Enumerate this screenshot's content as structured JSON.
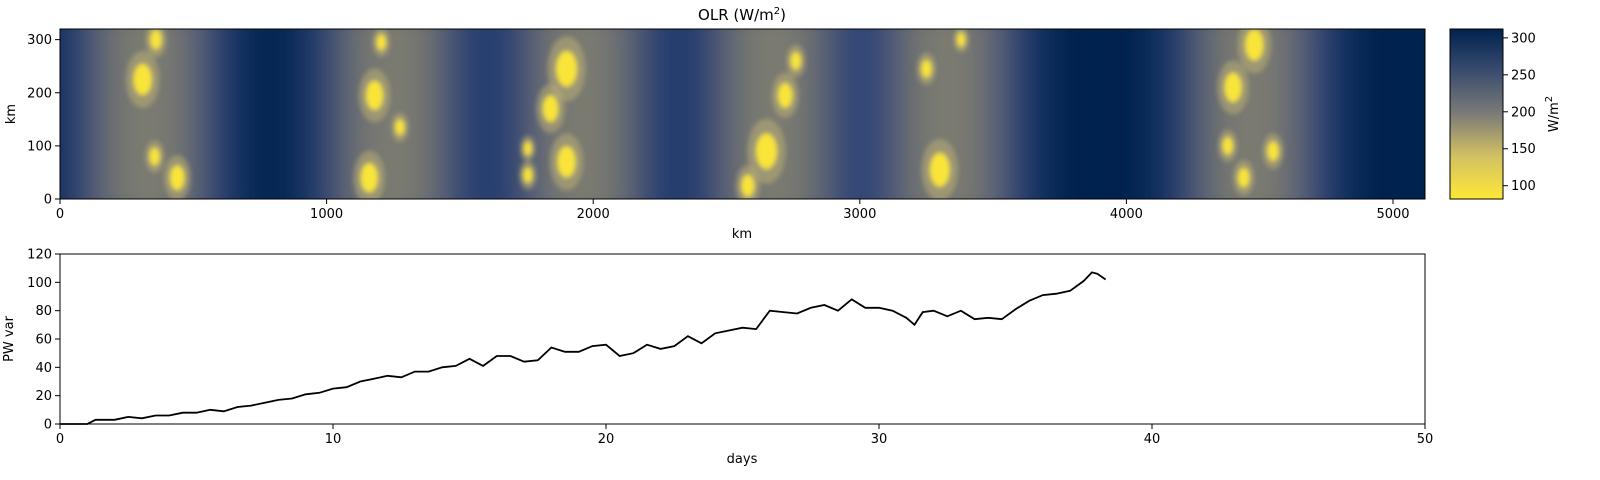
{
  "chart_data": [
    {
      "type": "heatmap",
      "title": "OLR (W/m²)",
      "title_main": "OLR (W/m",
      "title_sup": "2",
      "title_end": ")",
      "xlabel": "km",
      "ylabel": "km",
      "xlim": [
        0,
        5120
      ],
      "ylim": [
        0,
        320
      ],
      "xticks": [
        0,
        1000,
        2000,
        3000,
        4000,
        5000
      ],
      "yticks": [
        0,
        100,
        200,
        300
      ],
      "colormap": "cividis_r",
      "colors": {
        "high": "#00224e",
        "mid": "#7c7b78",
        "low": "#fee838"
      },
      "colorbar": {
        "label_main": "W/m",
        "label_sup": "2",
        "range": [
          82,
          312
        ],
        "ticks": [
          100,
          150,
          200,
          250,
          300
        ]
      },
      "convective_bands_center_km": [
        330,
        1250,
        1960,
        2680,
        3330,
        4470
      ],
      "blobs": [
        {
          "x": 310,
          "y": 225,
          "r": 35
        },
        {
          "x": 360,
          "y": 300,
          "r": 22
        },
        {
          "x": 440,
          "y": 40,
          "r": 28
        },
        {
          "x": 355,
          "y": 80,
          "r": 20
        },
        {
          "x": 1180,
          "y": 195,
          "r": 33
        },
        {
          "x": 1160,
          "y": 40,
          "r": 33
        },
        {
          "x": 1275,
          "y": 135,
          "r": 18
        },
        {
          "x": 1205,
          "y": 295,
          "r": 18
        },
        {
          "x": 1900,
          "y": 245,
          "r": 40
        },
        {
          "x": 1840,
          "y": 170,
          "r": 30
        },
        {
          "x": 1900,
          "y": 70,
          "r": 35
        },
        {
          "x": 1755,
          "y": 95,
          "r": 16
        },
        {
          "x": 1755,
          "y": 45,
          "r": 18
        },
        {
          "x": 2650,
          "y": 90,
          "r": 40
        },
        {
          "x": 2720,
          "y": 195,
          "r": 28
        },
        {
          "x": 2580,
          "y": 25,
          "r": 25
        },
        {
          "x": 2760,
          "y": 260,
          "r": 20
        },
        {
          "x": 3300,
          "y": 55,
          "r": 38
        },
        {
          "x": 3250,
          "y": 245,
          "r": 20
        },
        {
          "x": 3380,
          "y": 300,
          "r": 16
        },
        {
          "x": 4400,
          "y": 210,
          "r": 33
        },
        {
          "x": 4480,
          "y": 290,
          "r": 35
        },
        {
          "x": 4550,
          "y": 90,
          "r": 22
        },
        {
          "x": 4380,
          "y": 100,
          "r": 20
        },
        {
          "x": 4440,
          "y": 40,
          "r": 22
        }
      ]
    },
    {
      "type": "line",
      "title": "",
      "xlabel": "days",
      "ylabel": "PW var",
      "xlim": [
        0,
        50
      ],
      "ylim": [
        0,
        120
      ],
      "xticks": [
        0,
        10,
        20,
        30,
        40,
        50
      ],
      "yticks": [
        0,
        20,
        40,
        60,
        80,
        100,
        120
      ],
      "color": "#000000",
      "series": [
        {
          "x": [
            0,
            1,
            1.3,
            2,
            2.5,
            3,
            3.5,
            4,
            4.5,
            5,
            5.5,
            6,
            6.5,
            7,
            7.5,
            8,
            8.5,
            9,
            9.5,
            10,
            10.5,
            11,
            11.5,
            12,
            12.5,
            13,
            13.5,
            14,
            14.5,
            15,
            15.5,
            16,
            16.5,
            17,
            17.5,
            18,
            18.5,
            19,
            19.5,
            20,
            20.5,
            21,
            21.5,
            22,
            22.5,
            23,
            23.5,
            24,
            24.5,
            25,
            25.5,
            26,
            26.5,
            27,
            27.5,
            28,
            28.5,
            29,
            29.5,
            30,
            30.5,
            31,
            31.3,
            31.6,
            32,
            32.5,
            33,
            33.5,
            34,
            34.5,
            35,
            35.5,
            36,
            36.5,
            37,
            37.5,
            37.8,
            38,
            38.3
          ],
          "y": [
            0,
            0,
            3,
            3,
            5,
            4,
            6,
            6,
            8,
            8,
            10,
            9,
            12,
            13,
            15,
            17,
            18,
            21,
            22,
            25,
            26,
            30,
            32,
            34,
            33,
            37,
            37,
            40,
            41,
            46,
            41,
            48,
            48,
            44,
            45,
            54,
            51,
            51,
            55,
            56,
            48,
            50,
            56,
            53,
            55,
            62,
            57,
            64,
            66,
            68,
            67,
            80,
            79,
            78,
            82,
            84,
            80,
            88,
            82,
            82,
            80,
            75,
            70,
            79,
            80,
            76,
            80,
            74,
            75,
            74,
            81,
            87,
            91,
            92,
            94,
            101,
            107,
            106,
            102
          ]
        }
      ]
    }
  ]
}
